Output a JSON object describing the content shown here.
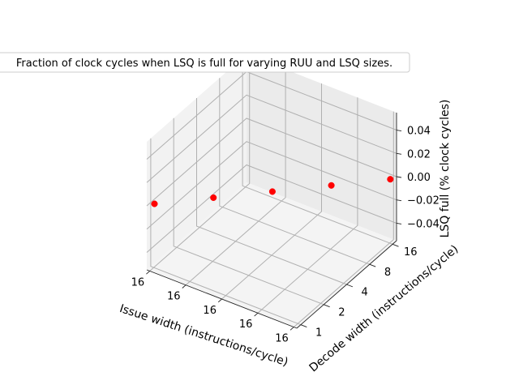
{
  "chart_data": {
    "type": "scatter",
    "projection": "3d",
    "title": "Fraction of clock cycles when LSQ is full for varying RUU and LSQ sizes.",
    "xlabel": "Issue width (instructions/cycle)",
    "ylabel": "Decode width (instructions/cycle)",
    "zlabel": "LSQ full (% clock cycles)",
    "x_ticks": [
      "16",
      "16",
      "16",
      "16",
      "16"
    ],
    "y_ticks": [
      "1",
      "2",
      "4",
      "8",
      "16"
    ],
    "z_ticks": [
      "−0.04",
      "−0.02",
      "0.00",
      "0.02",
      "0.04"
    ],
    "zlim": [
      -0.055,
      0.055
    ],
    "grid": true,
    "marker_color": "#ff0000",
    "series": [
      {
        "points": [
          {
            "x": "16",
            "y": "1",
            "z": 0
          },
          {
            "x": "16",
            "y": "2",
            "z": 0
          },
          {
            "x": "16",
            "y": "4",
            "z": 0
          },
          {
            "x": "16",
            "y": "8",
            "z": 0
          },
          {
            "x": "16",
            "y": "16",
            "z": 0
          }
        ]
      }
    ]
  }
}
